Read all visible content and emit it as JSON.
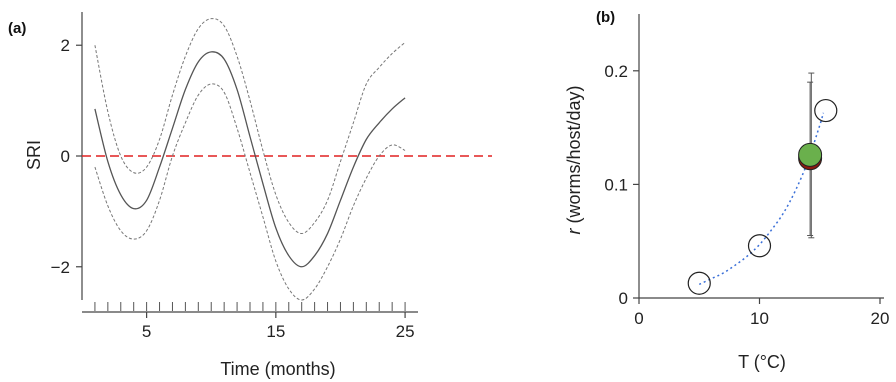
{
  "chart_data": [
    {
      "type": "line",
      "panel_label": "(a)",
      "xlabel": "Time (months)",
      "ylabel": "SRI",
      "xlim": [
        0,
        26
      ],
      "ylim": [
        -2.6,
        2.6
      ],
      "x_ticks": [
        5,
        15,
        25
      ],
      "y_ticks": [
        -2,
        0,
        2
      ],
      "y_tick_labels": [
        "−2",
        "0",
        "2"
      ],
      "rug_x": [
        1,
        2,
        3,
        4,
        5,
        6,
        7,
        8,
        9,
        10,
        11,
        12,
        13,
        14,
        15,
        16,
        17,
        18,
        19,
        20,
        21,
        22,
        23,
        24,
        25
      ],
      "reference_line": {
        "y": 0,
        "color": "#e02020",
        "style": "dashed"
      },
      "series": [
        {
          "role": "estimate",
          "x": [
            1,
            2,
            3,
            4,
            5,
            6,
            7,
            8,
            9,
            10,
            11,
            12,
            13,
            14,
            15,
            16,
            17,
            18,
            19,
            20,
            21,
            22,
            23,
            24,
            25
          ],
          "y": [
            0.85,
            -0.1,
            -0.7,
            -0.95,
            -0.8,
            -0.2,
            0.5,
            1.2,
            1.7,
            1.88,
            1.75,
            1.2,
            0.35,
            -0.5,
            -1.3,
            -1.8,
            -2.0,
            -1.8,
            -1.4,
            -0.8,
            -0.2,
            0.3,
            0.6,
            0.85,
            1.05
          ],
          "color": "#555555"
        },
        {
          "role": "upper-ci",
          "x": [
            1,
            2,
            3,
            4,
            5,
            6,
            7,
            8,
            9,
            10,
            11,
            12,
            13,
            14,
            15,
            16,
            17,
            18,
            19,
            20,
            21,
            22,
            23,
            24,
            25
          ],
          "y": [
            2.0,
            0.8,
            0.0,
            -0.3,
            -0.2,
            0.3,
            1.1,
            1.8,
            2.3,
            2.48,
            2.35,
            1.8,
            1.0,
            0.1,
            -0.7,
            -1.2,
            -1.4,
            -1.2,
            -0.8,
            -0.1,
            0.6,
            1.3,
            1.6,
            1.85,
            2.05
          ],
          "color": "#777777",
          "style": "dashed"
        },
        {
          "role": "lower-ci",
          "x": [
            1,
            2,
            3,
            4,
            5,
            6,
            7,
            8,
            9,
            10,
            11,
            12,
            13,
            14,
            15,
            16,
            17,
            18,
            19,
            20,
            21,
            22,
            23,
            24,
            25
          ],
          "y": [
            -0.2,
            -0.9,
            -1.35,
            -1.5,
            -1.35,
            -0.8,
            0.0,
            0.6,
            1.1,
            1.3,
            1.15,
            0.5,
            -0.3,
            -1.1,
            -1.9,
            -2.4,
            -2.6,
            -2.4,
            -2.0,
            -1.5,
            -0.9,
            -0.4,
            0.0,
            0.2,
            0.1
          ],
          "color": "#777777",
          "style": "dashed"
        }
      ]
    },
    {
      "type": "scatter",
      "panel_label": "(b)",
      "xlabel": "T (°C)",
      "ylabel_italic": "r",
      "ylabel_rest": " (worms/host/day)",
      "xlim": [
        0,
        20
      ],
      "ylim": [
        0,
        0.25
      ],
      "x_ticks": [
        0,
        10,
        20
      ],
      "y_ticks": [
        0,
        0.1,
        0.2
      ],
      "y_tick_labels": [
        "0",
        "0.1",
        "0.2"
      ],
      "points": [
        {
          "x": 5,
          "y": 0.013,
          "fill": "none",
          "stroke": "#222222"
        },
        {
          "x": 10,
          "y": 0.046,
          "fill": "none",
          "stroke": "#222222"
        },
        {
          "x": 15.5,
          "y": 0.165,
          "fill": "none",
          "stroke": "#222222"
        }
      ],
      "highlight_points": [
        {
          "x": 14.2,
          "y": 0.123,
          "fill": "#8b1a10",
          "error": [
            0.055,
            0.19
          ]
        },
        {
          "x": 14.2,
          "y": 0.126,
          "fill": "#6ab04c",
          "error": [
            0.053,
            0.198
          ]
        }
      ],
      "fit_curve": {
        "x": [
          5,
          6,
          7,
          8,
          9,
          10,
          11,
          12,
          13,
          14,
          15,
          15.3
        ],
        "y": [
          0.012,
          0.017,
          0.022,
          0.029,
          0.037,
          0.047,
          0.06,
          0.075,
          0.095,
          0.12,
          0.152,
          0.163
        ],
        "color": "#3a6fd8",
        "style": "dotted"
      }
    }
  ]
}
